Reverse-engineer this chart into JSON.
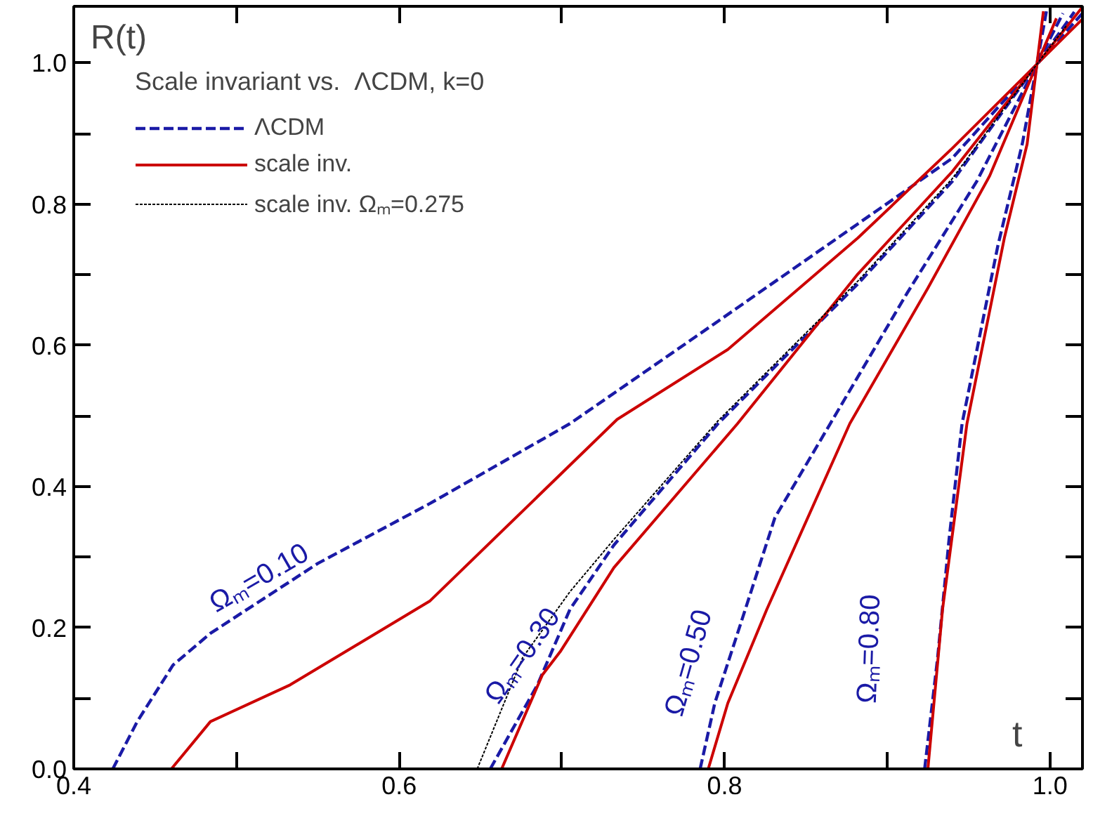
{
  "chart_data": {
    "type": "line",
    "xlabel": "t",
    "ylabel": "R(t)",
    "legend_title": "Scale invariant vs.  ΛCDM, k=0",
    "legend": "top left",
    "grid": false,
    "marker": "none",
    "xlim": [
      0.4,
      1.02
    ],
    "ylim": [
      0,
      1.08
    ],
    "xticks": [
      0.4,
      0.6,
      0.8,
      {
        "value": 1,
        "label": "1.0"
      }
    ],
    "yticks": [
      {
        "value": 0,
        "label": "0.0"
      },
      0.2,
      0.4,
      0.6,
      0.8,
      {
        "value": 1,
        "label": "1.0"
      }
    ],
    "series": [
      {
        "name": "ΛCDM",
        "color": "#1a1aa6",
        "line_style": "dashed",
        "x": [
          0.424,
          0.439,
          0.461,
          0.484,
          0.55,
          0.619,
          0.705,
          0.796,
          0.882,
          0.94,
          0.992,
          1.02
        ],
        "values": [
          0,
          0.067,
          0.147,
          0.192,
          0.291,
          0.376,
          0.489,
          0.634,
          0.772,
          0.865,
          0.998,
          1.07
        ]
      },
      {
        "name": "scale inv.",
        "color": "#cc0000",
        "line_style": "solid",
        "x": [
          0.46,
          0.484,
          0.533,
          0.619,
          0.734,
          0.802,
          0.882,
          0.94,
          0.992,
          1.02
        ],
        "values": [
          0,
          0.067,
          0.119,
          0.238,
          0.495,
          0.594,
          0.752,
          0.879,
          0.998,
          1.062
        ]
      },
      {
        "name": "scale inv. Ωₘ=0.275",
        "color": "#000000",
        "line_style": "dotted",
        "x": [
          0.648,
          0.676,
          0.705,
          0.732,
          0.796,
          0.882,
          0.94,
          0.992,
          1.01
        ],
        "values": [
          0,
          0.158,
          0.251,
          0.325,
          0.493,
          0.691,
          0.836,
          0.998,
          1.052
        ]
      },
      {
        "color": "#1a1aa6",
        "line_style": "dashed",
        "x": [
          0.656,
          0.685,
          0.705,
          0.732,
          0.796,
          0.882,
          0.94,
          0.992,
          1.015
        ],
        "values": [
          0,
          0.119,
          0.226,
          0.317,
          0.489,
          0.687,
          0.832,
          0.998,
          1.072
        ]
      },
      {
        "color": "#cc0000",
        "line_style": "solid",
        "x": [
          0.663,
          0.688,
          0.699,
          0.732,
          0.808,
          0.882,
          0.94,
          0.992,
          1.02
        ],
        "values": [
          0,
          0.133,
          0.166,
          0.285,
          0.489,
          0.701,
          0.846,
          0.998,
          1.079
        ]
      },
      {
        "color": "#1a1aa6",
        "line_style": "dashed",
        "x": [
          0.785,
          0.794,
          0.808,
          0.831,
          0.865,
          0.912,
          0.955,
          0.992,
          1.008
        ],
        "values": [
          0,
          0.093,
          0.192,
          0.356,
          0.489,
          0.673,
          0.832,
          0.998,
          1.07
        ]
      },
      {
        "color": "#cc0000",
        "line_style": "solid",
        "x": [
          0.79,
          0.802,
          0.826,
          0.877,
          0.925,
          0.963,
          0.992,
          1.004
        ],
        "values": [
          0,
          0.093,
          0.226,
          0.489,
          0.681,
          0.84,
          0.998,
          1.063
        ]
      },
      {
        "color": "#1a1aa6",
        "line_style": "dashed",
        "x": [
          0.923,
          0.931,
          0.938,
          0.946,
          0.968,
          0.983,
          0.992,
          0.998
        ],
        "values": [
          0,
          0.158,
          0.325,
          0.489,
          0.741,
          0.885,
          0.998,
          1.075
        ]
      },
      {
        "color": "#cc0000",
        "line_style": "solid",
        "x": [
          0.925,
          0.934,
          0.949,
          0.972,
          0.986,
          0.992,
          0.996
        ],
        "values": [
          0,
          0.226,
          0.489,
          0.752,
          0.885,
          0.998,
          1.073
        ]
      }
    ],
    "annotations": [
      "Ωₘ=0.10",
      "Ωₘ=0.30",
      "Ωₘ=0.50",
      "Ωₘ=0.80"
    ]
  }
}
